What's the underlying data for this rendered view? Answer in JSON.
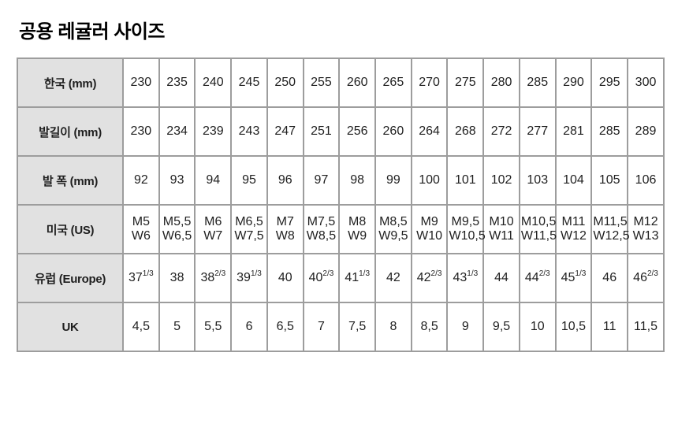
{
  "page": {
    "title": "공용 레귤러 사이즈"
  },
  "colors": {
    "header_bg": "#e1e1e1",
    "border": "#9d9d9d",
    "text": "#1f1f1f",
    "title": "#000000",
    "page_bg": "#ffffff"
  },
  "table": {
    "columns_count": 15,
    "rows": [
      {
        "label": "한국 (mm)",
        "values": [
          "230",
          "235",
          "240",
          "245",
          "250",
          "255",
          "260",
          "265",
          "270",
          "275",
          "280",
          "285",
          "290",
          "295",
          "300"
        ]
      },
      {
        "label": "발길이 (mm)",
        "values": [
          "230",
          "234",
          "239",
          "243",
          "247",
          "251",
          "256",
          "260",
          "264",
          "268",
          "272",
          "277",
          "281",
          "285",
          "289"
        ]
      },
      {
        "label": "발 폭 (mm)",
        "values": [
          "92",
          "93",
          "94",
          "95",
          "96",
          "97",
          "98",
          "99",
          "100",
          "101",
          "102",
          "103",
          "104",
          "105",
          "106"
        ]
      },
      {
        "label": "미국 (US)",
        "values": [
          "M5|W6",
          "M5,5|W6,5",
          "M6|W7",
          "M6,5|W7,5",
          "M7|W8",
          "M7,5|W8,5",
          "M8|W9",
          "M8,5|W9,5",
          "M9|W10",
          "M9,5|W10,5",
          "M10|W11",
          "M10,5|W11,5",
          "M11|W12",
          "M11,5|W12,5",
          "M12|W13"
        ]
      },
      {
        "label": "유럽 (Europe)",
        "values": [
          "37^1/3",
          "38",
          "38^2/3",
          "39^1/3",
          "40",
          "40^2/3",
          "41^1/3",
          "42",
          "42^2/3",
          "43^1/3",
          "44",
          "44^2/3",
          "45^1/3",
          "46",
          "46^2/3"
        ]
      },
      {
        "label": "UK",
        "values": [
          "4,5",
          "5",
          "5,5",
          "6",
          "6,5",
          "7",
          "7,5",
          "8",
          "8,5",
          "9",
          "9,5",
          "10",
          "10,5",
          "11",
          "11,5"
        ]
      }
    ]
  }
}
